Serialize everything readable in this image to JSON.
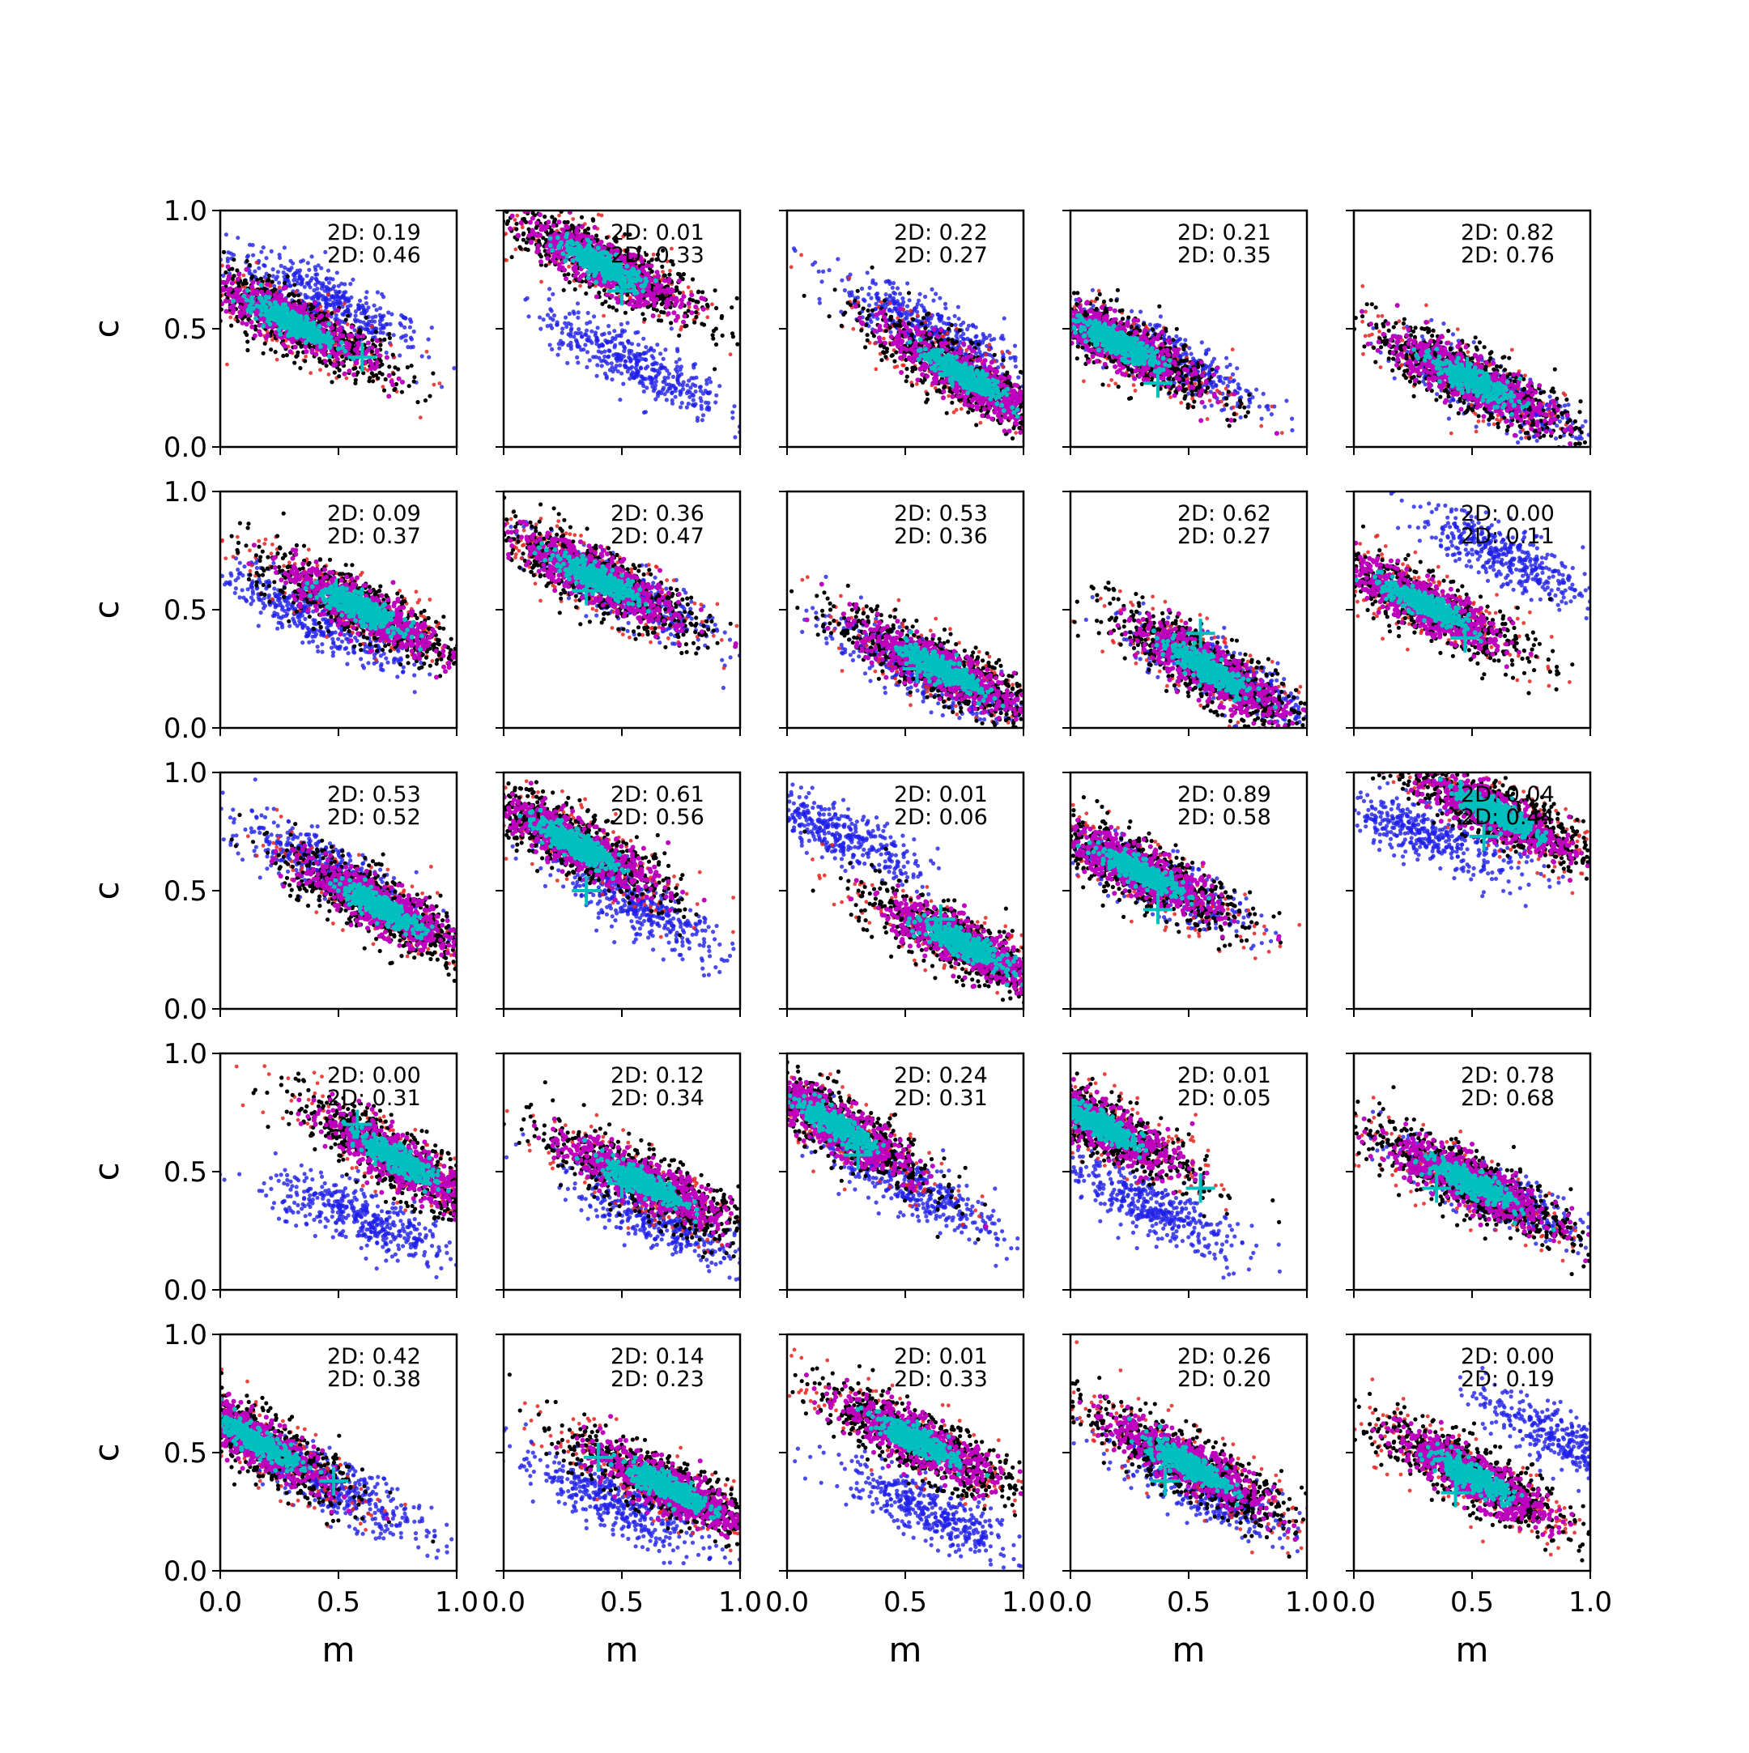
{
  "chart_data": {
    "type": "scatter",
    "layout": {
      "rows": 5,
      "cols": 5
    },
    "xlabel": "m",
    "ylabel": "c",
    "xlim": [
      0,
      1
    ],
    "ylim": [
      0,
      1
    ],
    "xticks": [
      "0.0",
      "0.5",
      "1.0"
    ],
    "yticks": [
      "0.0",
      "0.5",
      "1.0"
    ],
    "grid": false,
    "legend": "none",
    "colors": {
      "blue": "#1f1fe8",
      "red": "#e8231f",
      "black": "#000000",
      "magenta": "#bf00bf",
      "cyan": "#00bfbf"
    },
    "panels": [
      {
        "texts": [
          "2D: 0.19",
          "2D: 0.46"
        ],
        "red": {
          "cx": 0.3,
          "cy": 0.53,
          "slope": -0.5
        },
        "blue": {
          "cx": 0.45,
          "cy": 0.62,
          "slope": -0.5
        },
        "truth": [
          0.6,
          0.38
        ]
      },
      {
        "texts": [
          "2D: 0.01",
          "2D: 0.33"
        ],
        "red": {
          "cx": 0.42,
          "cy": 0.77,
          "slope": -0.5
        },
        "blue": {
          "cx": 0.55,
          "cy": 0.36,
          "slope": -0.5
        },
        "truth": [
          0.5,
          0.66
        ]
      },
      {
        "texts": [
          "2D: 0.22",
          "2D: 0.27"
        ],
        "red": {
          "cx": 0.75,
          "cy": 0.3,
          "slope": -0.6
        },
        "blue": {
          "cx": 0.6,
          "cy": 0.5,
          "slope": -0.5
        },
        "truth": [
          0.7,
          0.31
        ]
      },
      {
        "texts": [
          "2D: 0.21",
          "2D: 0.35"
        ],
        "red": {
          "cx": 0.2,
          "cy": 0.44,
          "slope": -0.5
        },
        "blue": {
          "cx": 0.42,
          "cy": 0.38,
          "slope": -0.5
        },
        "truth": [
          0.37,
          0.27
        ]
      },
      {
        "texts": [
          "2D: 0.82",
          "2D: 0.76"
        ],
        "red": {
          "cx": 0.5,
          "cy": 0.28,
          "slope": -0.5
        },
        "blue": {
          "cx": 0.55,
          "cy": 0.25,
          "slope": -0.5
        },
        "truth": [
          0.48,
          0.32
        ]
      },
      {
        "texts": [
          "2D: 0.09",
          "2D: 0.37"
        ],
        "red": {
          "cx": 0.6,
          "cy": 0.5,
          "slope": -0.5
        },
        "blue": {
          "cx": 0.4,
          "cy": 0.47,
          "slope": -0.5
        },
        "truth": [
          0.49,
          0.57
        ]
      },
      {
        "texts": [
          "2D: 0.36",
          "2D: 0.47"
        ],
        "red": {
          "cx": 0.4,
          "cy": 0.63,
          "slope": -0.5
        },
        "blue": {
          "cx": 0.5,
          "cy": 0.57,
          "slope": -0.5
        },
        "truth": [
          0.35,
          0.58
        ]
      },
      {
        "texts": [
          "2D: 0.53",
          "2D: 0.36"
        ],
        "red": {
          "cx": 0.65,
          "cy": 0.25,
          "slope": -0.5
        },
        "blue": {
          "cx": 0.55,
          "cy": 0.25,
          "slope": -0.5
        },
        "truth": [
          0.55,
          0.25
        ]
      },
      {
        "texts": [
          "2D: 0.62",
          "2D: 0.27"
        ],
        "red": {
          "cx": 0.58,
          "cy": 0.25,
          "slope": -0.6
        },
        "blue": {
          "cx": 0.65,
          "cy": 0.22,
          "slope": -0.5
        },
        "truth": [
          0.55,
          0.4
        ]
      },
      {
        "texts": [
          "2D: 0.00",
          "2D: 0.11"
        ],
        "red": {
          "cx": 0.3,
          "cy": 0.52,
          "slope": -0.5
        },
        "blue": {
          "cx": 0.65,
          "cy": 0.72,
          "slope": -0.5
        },
        "truth": [
          0.47,
          0.38
        ]
      },
      {
        "texts": [
          "2D: 0.53",
          "2D: 0.52"
        ],
        "red": {
          "cx": 0.68,
          "cy": 0.43,
          "slope": -0.55
        },
        "blue": {
          "cx": 0.45,
          "cy": 0.6,
          "slope": -0.5
        },
        "truth": [
          0.59,
          0.47
        ]
      },
      {
        "texts": [
          "2D: 0.61",
          "2D: 0.56"
        ],
        "red": {
          "cx": 0.3,
          "cy": 0.7,
          "slope": -0.55
        },
        "blue": {
          "cx": 0.55,
          "cy": 0.45,
          "slope": -0.6
        },
        "truth": [
          0.35,
          0.5
        ]
      },
      {
        "texts": [
          "2D: 0.01",
          "2D: 0.06"
        ],
        "red": {
          "cx": 0.75,
          "cy": 0.27,
          "slope": -0.5
        },
        "blue": {
          "cx": 0.2,
          "cy": 0.75,
          "slope": -0.5
        },
        "truth": [
          0.65,
          0.38
        ]
      },
      {
        "texts": [
          "2D: 0.89",
          "2D: 0.58"
        ],
        "red": {
          "cx": 0.3,
          "cy": 0.58,
          "slope": -0.5
        },
        "blue": {
          "cx": 0.35,
          "cy": 0.55,
          "slope": -0.5
        },
        "truth": [
          0.37,
          0.42
        ]
      },
      {
        "texts": [
          "2D: 0.04",
          "2D: 0.44"
        ],
        "red": {
          "cx": 0.6,
          "cy": 0.83,
          "slope": -0.5
        },
        "blue": {
          "cx": 0.3,
          "cy": 0.74,
          "slope": -0.4
        },
        "truth": [
          0.55,
          0.73
        ]
      },
      {
        "texts": [
          "2D: 0.00",
          "2D: 0.31"
        ],
        "red": {
          "cx": 0.75,
          "cy": 0.55,
          "slope": -0.6
        },
        "blue": {
          "cx": 0.6,
          "cy": 0.3,
          "slope": -0.4
        },
        "truth": [
          0.58,
          0.7
        ]
      },
      {
        "texts": [
          "2D: 0.12",
          "2D: 0.34"
        ],
        "red": {
          "cx": 0.6,
          "cy": 0.45,
          "slope": -0.5
        },
        "blue": {
          "cx": 0.65,
          "cy": 0.3,
          "slope": -0.5
        },
        "truth": [
          0.5,
          0.45
        ]
      },
      {
        "texts": [
          "2D: 0.24",
          "2D: 0.31"
        ],
        "red": {
          "cx": 0.2,
          "cy": 0.7,
          "slope": -0.6
        },
        "blue": {
          "cx": 0.5,
          "cy": 0.45,
          "slope": -0.5
        },
        "truth": [
          0.3,
          0.57
        ]
      },
      {
        "texts": [
          "2D: 0.01",
          "2D: 0.05"
        ],
        "red": {
          "cx": 0.12,
          "cy": 0.7,
          "slope": -0.55
        },
        "blue": {
          "cx": 0.35,
          "cy": 0.35,
          "slope": -0.5
        },
        "truth": [
          0.55,
          0.43
        ]
      },
      {
        "texts": [
          "2D: 0.78",
          "2D: 0.68"
        ],
        "red": {
          "cx": 0.5,
          "cy": 0.45,
          "slope": -0.5
        },
        "blue": {
          "cx": 0.55,
          "cy": 0.42,
          "slope": -0.5
        },
        "truth": [
          0.35,
          0.43
        ]
      },
      {
        "texts": [
          "2D: 0.42",
          "2D: 0.38"
        ],
        "red": {
          "cx": 0.15,
          "cy": 0.55,
          "slope": -0.6
        },
        "blue": {
          "cx": 0.5,
          "cy": 0.35,
          "slope": -0.5
        },
        "truth": [
          0.48,
          0.38
        ]
      },
      {
        "texts": [
          "2D: 0.14",
          "2D: 0.23"
        ],
        "red": {
          "cx": 0.7,
          "cy": 0.35,
          "slope": -0.5
        },
        "blue": {
          "cx": 0.45,
          "cy": 0.3,
          "slope": -0.5
        },
        "truth": [
          0.4,
          0.48
        ]
      },
      {
        "texts": [
          "2D: 0.01",
          "2D: 0.33"
        ],
        "red": {
          "cx": 0.55,
          "cy": 0.55,
          "slope": -0.5
        },
        "blue": {
          "cx": 0.6,
          "cy": 0.25,
          "slope": -0.5
        },
        "truth": [
          0.55,
          0.58
        ]
      },
      {
        "texts": [
          "2D: 0.26",
          "2D: 0.20"
        ],
        "red": {
          "cx": 0.5,
          "cy": 0.45,
          "slope": -0.55
        },
        "blue": {
          "cx": 0.55,
          "cy": 0.35,
          "slope": -0.5
        },
        "truth": [
          0.4,
          0.38
        ]
      },
      {
        "texts": [
          "2D: 0.00",
          "2D: 0.19"
        ],
        "red": {
          "cx": 0.5,
          "cy": 0.4,
          "slope": -0.55
        },
        "blue": {
          "cx": 0.9,
          "cy": 0.55,
          "slope": -0.5
        },
        "truth": [
          0.43,
          0.33
        ]
      }
    ]
  }
}
